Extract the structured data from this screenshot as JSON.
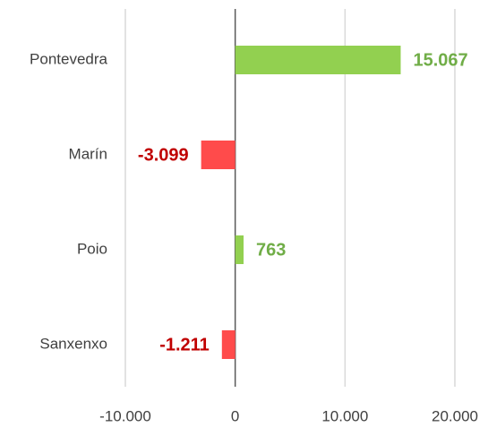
{
  "chart_data": {
    "type": "bar",
    "orientation": "horizontal",
    "categories": [
      "Pontevedra",
      "Marín",
      "Poio",
      "Sanxenxo"
    ],
    "values": [
      15067,
      -3099,
      763,
      -1211
    ],
    "value_labels": [
      "15.067",
      "-3.099",
      "763",
      "-1.211"
    ],
    "positive_color": "#92d050",
    "negative_color": "#ff4b4b",
    "positive_label_color": "#70ad47",
    "negative_label_color": "#c00000",
    "xlim": [
      -10000,
      20000
    ],
    "xticks": [
      {
        "value": -10000,
        "label": "-10.000"
      },
      0,
      {
        "value": 10000,
        "label": "10.000"
      },
      {
        "value": 20000,
        "label": "20.000"
      }
    ],
    "grid": true
  }
}
